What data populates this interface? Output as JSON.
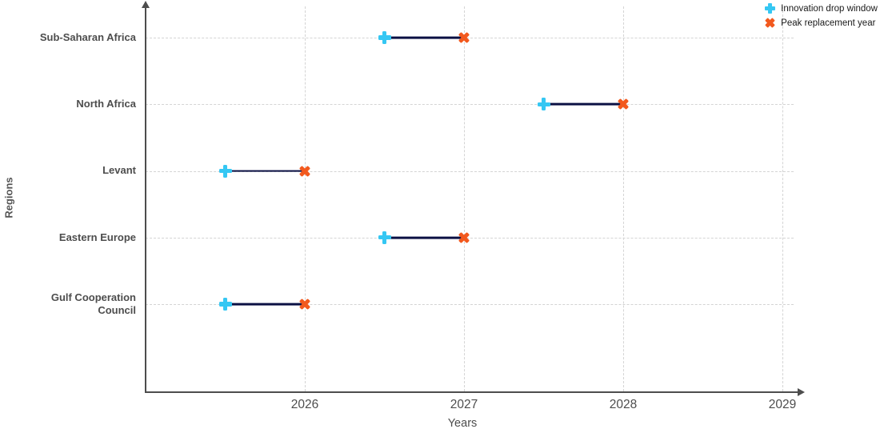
{
  "chart_data": {
    "type": "dumbbell",
    "title": "",
    "xlabel": "Years",
    "ylabel": "Regions",
    "categories": [
      "Sub-Saharan Africa",
      "North Africa",
      "Levant",
      "Eastern Europe",
      "Gulf Cooperation Council"
    ],
    "x_ticks": [
      2026,
      2027,
      2028,
      2029
    ],
    "xlim": [
      2025,
      2029.2
    ],
    "grid": true,
    "legend_position": "top-right",
    "series": [
      {
        "name": "Innovation drop window",
        "marker": "plus",
        "color": "#35c7f3",
        "values": [
          2026.5,
          2027.5,
          2025.5,
          2026.5,
          2025.5
        ]
      },
      {
        "name": "Peak replacement year",
        "marker": "x",
        "color": "#f2591e",
        "values": [
          2027,
          2028,
          2026,
          2027,
          2026
        ]
      }
    ],
    "connector_color": "#0b1043",
    "colors": {
      "grid": "#d4d4d4",
      "axis": "#4d4d4d",
      "label": "#4d4d4d"
    }
  }
}
